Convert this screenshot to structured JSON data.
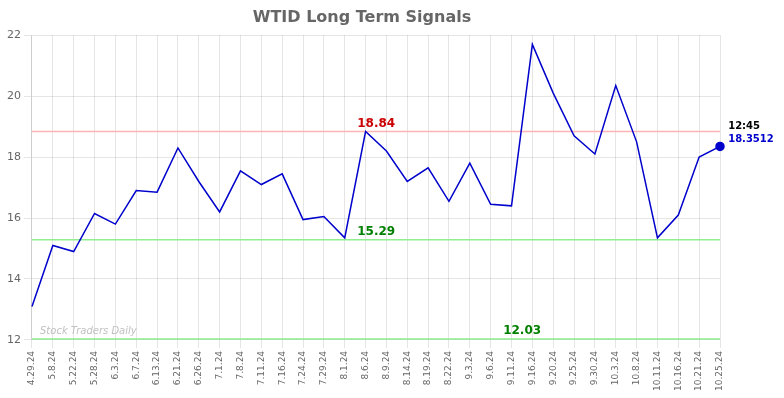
{
  "chart_data": {
    "type": "line",
    "title": "WTID Long Term Signals",
    "categories": [
      "4.29.24",
      "5.8.24",
      "5.22.24",
      "5.28.24",
      "6.3.24",
      "6.7.24",
      "6.13.24",
      "6.21.24",
      "6.26.24",
      "7.1.24",
      "7.8.24",
      "7.11.24",
      "7.16.24",
      "7.24.24",
      "7.29.24",
      "8.1.24",
      "8.6.24",
      "8.9.24",
      "8.14.24",
      "8.19.24",
      "8.22.24",
      "9.3.24",
      "9.6.24",
      "9.11.24",
      "9.16.24",
      "9.20.24",
      "9.25.24",
      "9.30.24",
      "10.3.24",
      "10.8.24",
      "10.11.24",
      "10.16.24",
      "10.21.24",
      "10.25.24"
    ],
    "values": [
      13.1,
      15.1,
      14.9,
      16.15,
      15.8,
      16.9,
      16.85,
      18.3,
      17.2,
      16.2,
      17.55,
      17.1,
      17.45,
      15.95,
      16.05,
      15.35,
      18.84,
      18.2,
      17.2,
      17.65,
      16.55,
      17.8,
      16.45,
      16.4,
      21.7,
      20.1,
      18.7,
      18.1,
      20.35,
      18.5,
      15.35,
      16.1,
      18.0,
      18.3512
    ],
    "color": "#0000cc",
    "ylim": [
      12,
      22
    ],
    "yticks": [
      12,
      14,
      16,
      18,
      20,
      22
    ],
    "grid": true,
    "hlines": [
      {
        "value": 18.84,
        "color": "#ffb3b3",
        "label": "18.84",
        "label_color": "#cc0000",
        "at": "8.6.24"
      },
      {
        "value": 15.29,
        "color": "#90ee90",
        "label": "15.29",
        "label_color": "#008000",
        "at": "8.6.24"
      },
      {
        "value": 12.03,
        "color": "#90ee90",
        "label": "12.03",
        "label_color": "#008000",
        "at": "9.11.24"
      }
    ],
    "last_point": {
      "marker": "circle",
      "color": "#0000cc",
      "labels": [
        {
          "text": "12:45",
          "color": "#000000"
        },
        {
          "text": "18.3512",
          "color": "#0000cc"
        }
      ]
    },
    "watermark": {
      "text": "Stock Traders Daily",
      "color": "#c0c0c0"
    }
  }
}
